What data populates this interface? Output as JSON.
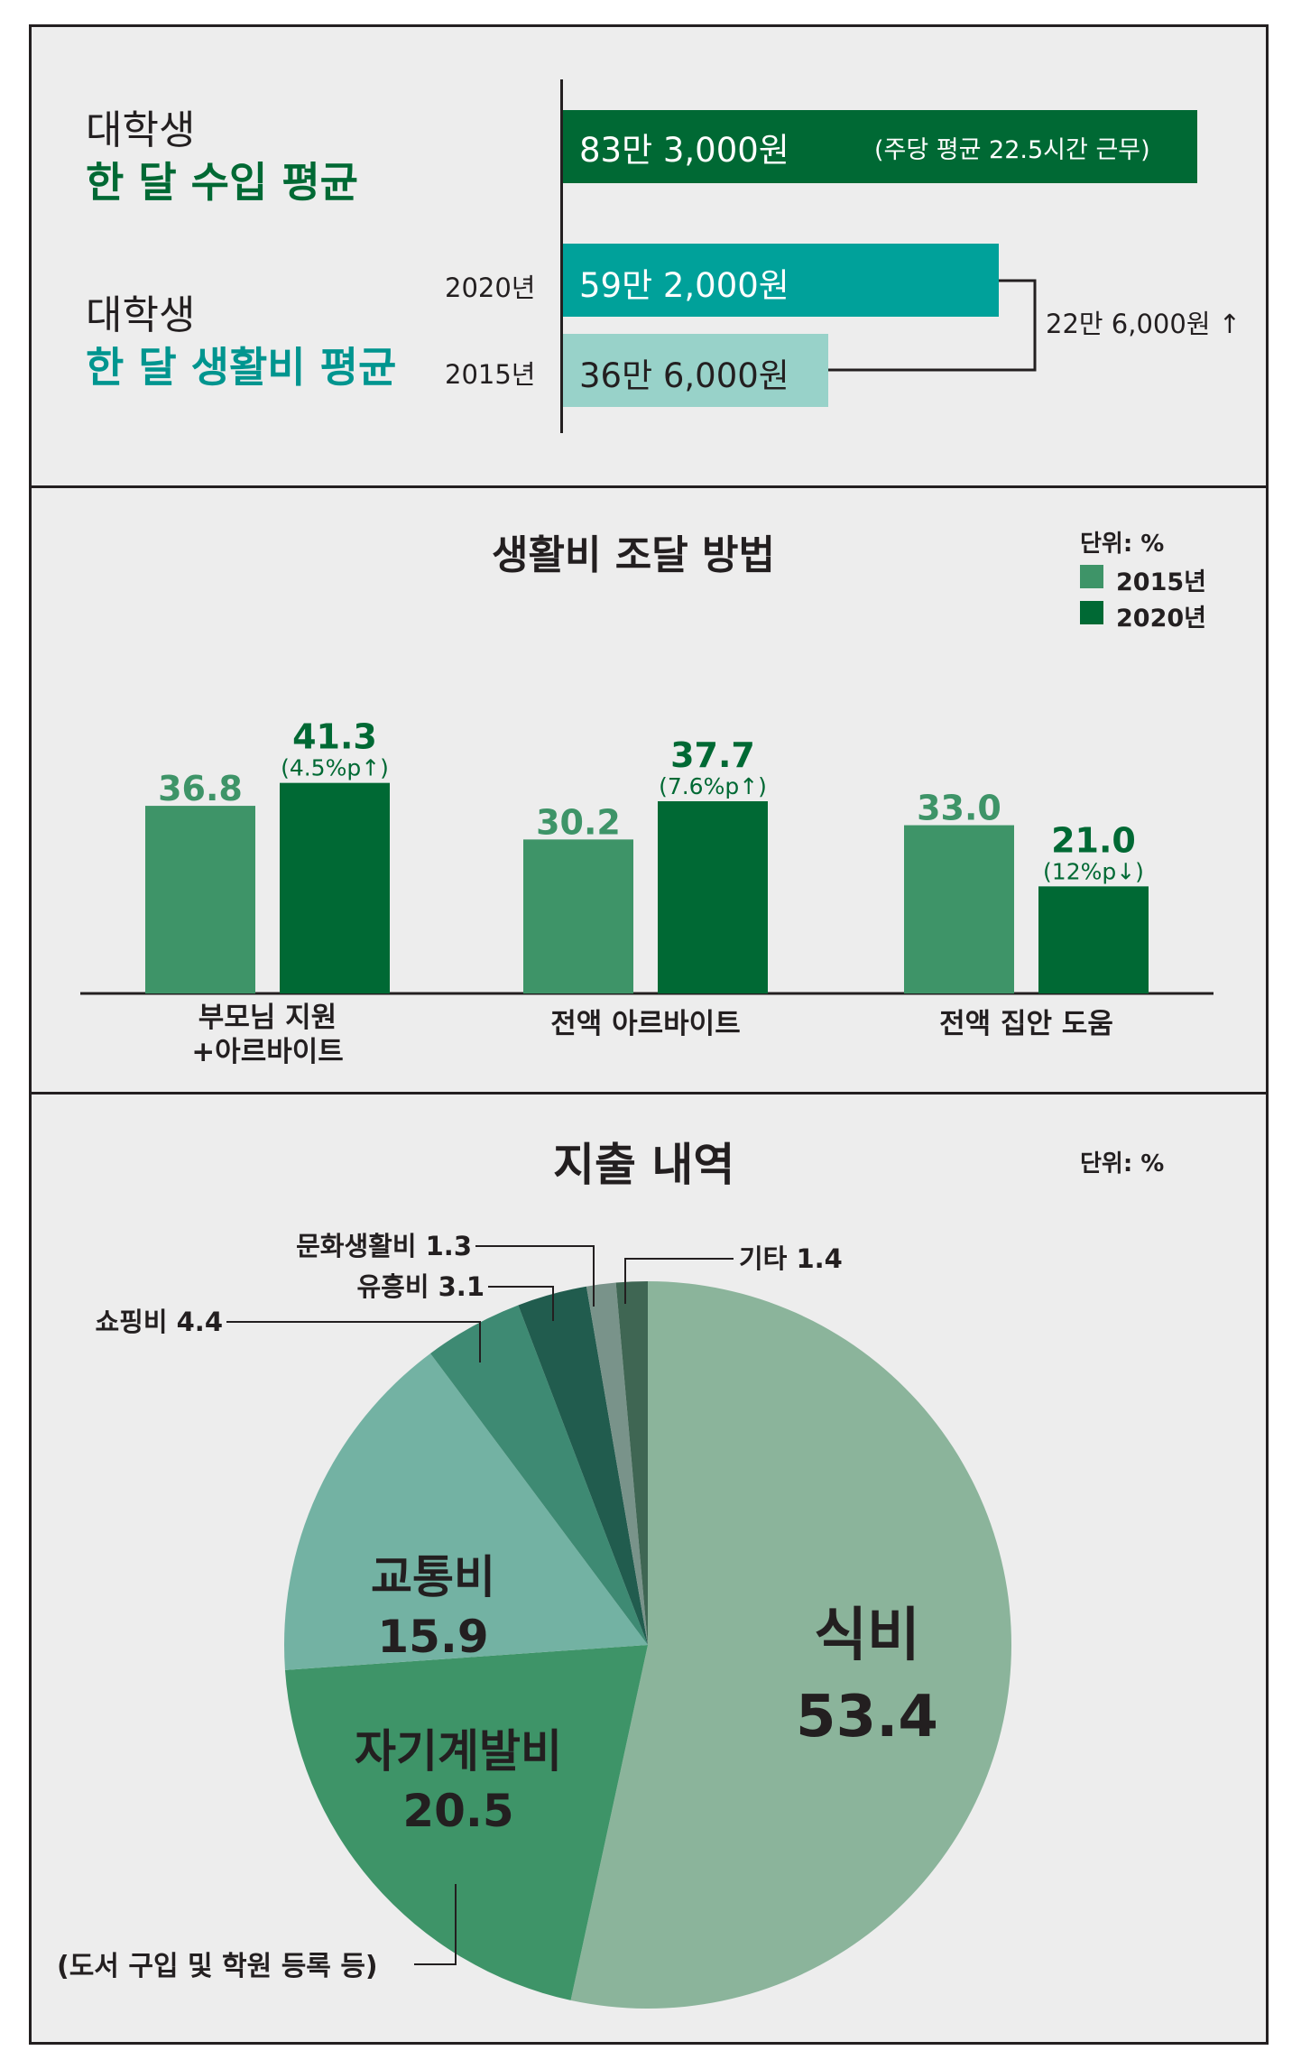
{
  "income_section": {
    "income_label_line1": "대학생",
    "income_label_line2": "한 달 수입 평균",
    "income_value": "83만 3,000원",
    "income_note": "(주당 평균 22.5시간 근무)",
    "cost_label_line1": "대학생",
    "cost_label_line2": "한 달 생활비 평균",
    "rows": [
      {
        "year": "2020년",
        "value": "59만 2,000원"
      },
      {
        "year": "2015년",
        "value": "36만 6,000원"
      }
    ],
    "diff": "22만 6,000원 ↑",
    "colors": {
      "income": "#006934",
      "cost2020": "#00a19a",
      "cost2015": "#98d2c9",
      "income_text": "#006934",
      "cost_text": "#00958f"
    }
  },
  "funding_section": {
    "title": "생활비 조달 방법",
    "unit": "단위: %",
    "legend": [
      {
        "name": "2015년",
        "color": "#3e9468"
      },
      {
        "name": "2020년",
        "color": "#006934"
      }
    ]
  },
  "spending_section": {
    "title": "지출 내역",
    "unit": "단위: %",
    "note": "(도서 구입 및 학원 등록 등)"
  },
  "chart_data": [
    {
      "type": "bar",
      "title": "생활비 조달 방법",
      "unit": "단위: %",
      "categories": [
        "부모님 지원\n+아르바이트",
        "전액 아르바이트",
        "전액 집안 도움"
      ],
      "category_lines": [
        [
          "부모님 지원",
          "+아르바이트"
        ],
        [
          "전액 아르바이트"
        ],
        [
          "전액 집안 도움"
        ]
      ],
      "series": [
        {
          "name": "2015년",
          "values": [
            36.8,
            30.2,
            33.0
          ],
          "labels": [
            "36.8",
            "30.2",
            "33.0"
          ],
          "color": "#3e9468"
        },
        {
          "name": "2020년",
          "values": [
            41.3,
            37.7,
            21.0
          ],
          "labels": [
            "41.3",
            "37.7",
            "21.0"
          ],
          "color": "#006934"
        }
      ],
      "changes": [
        "(4.5%p↑)",
        "(7.6%p↑)",
        "(12%p↓)"
      ],
      "ylim": [
        0,
        45
      ]
    },
    {
      "type": "pie",
      "title": "지출 내역",
      "unit": "단위: %",
      "slices": [
        {
          "name": "식비",
          "value": 53.4,
          "label": "53.4",
          "color": "#8bb49b"
        },
        {
          "name": "자기계발비",
          "value": 20.5,
          "label": "20.5",
          "color": "#3e9468"
        },
        {
          "name": "교통비",
          "value": 15.9,
          "label": "15.9",
          "color": "#73b2a3"
        },
        {
          "name": "쇼핑비",
          "value": 4.4,
          "label": "4.4",
          "color": "#3e8a73"
        },
        {
          "name": "유흥비",
          "value": 3.1,
          "label": "3.1",
          "color": "#215c4e"
        },
        {
          "name": "문화생활비",
          "value": 1.3,
          "label": "1.3",
          "color": "#79938a"
        },
        {
          "name": "기타",
          "value": 1.4,
          "label": "1.4",
          "color": "#3f6653"
        }
      ]
    }
  ]
}
